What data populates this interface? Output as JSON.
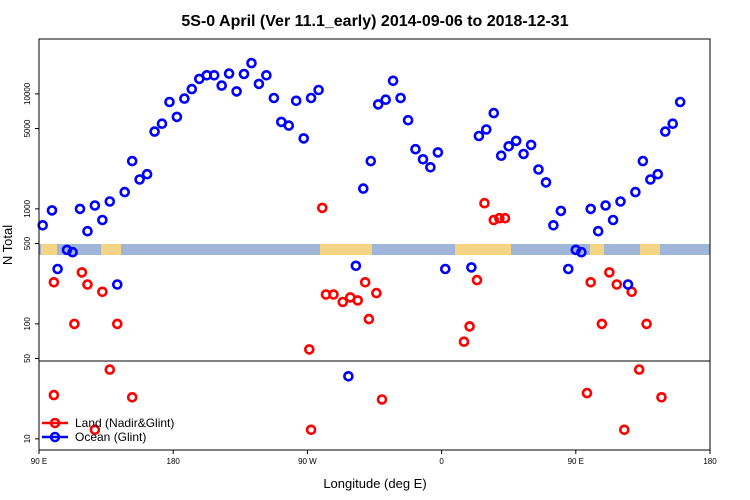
{
  "chart_data": {
    "type": "scatter",
    "title": "5S-0 April (Ver 11.1_early)   2014-09-06 to 2018-12-31",
    "xlabel": "Longitude (deg E)",
    "ylabel": "N Total",
    "xlim": [
      0,
      360
    ],
    "ylim": [
      8,
      30000
    ],
    "y_scale": "log",
    "grid": false,
    "x_ticks": [
      {
        "value": 0,
        "label": "90 E"
      },
      {
        "value": 72,
        "label": "180"
      },
      {
        "value": 144,
        "label": "90 W"
      },
      {
        "value": 216,
        "label": "0"
      },
      {
        "value": 288,
        "label": "90 E"
      },
      {
        "value": 360,
        "label": "180"
      }
    ],
    "y_ticks": [
      {
        "value": 10,
        "label": "10"
      },
      {
        "value": 50,
        "label": "50"
      },
      {
        "value": 100,
        "label": "100"
      },
      {
        "value": 500,
        "label": "500"
      },
      {
        "value": 1000,
        "label": "1000"
      },
      {
        "value": 5000,
        "label": "5000"
      },
      {
        "value": 10000,
        "label": "10000"
      }
    ],
    "reference_line_y": 50,
    "map_band": {
      "y_range": [
        340,
        470
      ],
      "ocean_color": "#9fb6d8",
      "land_color": "#f5d585"
    },
    "legend_position": "bottom-left",
    "series": [
      {
        "name": "Land (Nadir&Glint)",
        "color": "#ff0000",
        "points": [
          [
            8,
            24
          ],
          [
            8,
            230
          ],
          [
            19,
            100
          ],
          [
            23,
            280
          ],
          [
            26,
            220
          ],
          [
            30,
            12
          ],
          [
            34,
            190
          ],
          [
            38,
            40
          ],
          [
            42,
            100
          ],
          [
            50,
            23
          ],
          [
            145,
            60
          ],
          [
            146,
            12
          ],
          [
            152,
            1020
          ],
          [
            154,
            180
          ],
          [
            158,
            180
          ],
          [
            163,
            155
          ],
          [
            167,
            170
          ],
          [
            171,
            160
          ],
          [
            175,
            230
          ],
          [
            177,
            110
          ],
          [
            181,
            185
          ],
          [
            184,
            22
          ],
          [
            228,
            70
          ],
          [
            231,
            95
          ],
          [
            235,
            240
          ],
          [
            239,
            1120
          ],
          [
            244,
            800
          ],
          [
            247,
            830
          ],
          [
            250,
            830
          ],
          [
            294,
            25
          ],
          [
            296,
            230
          ],
          [
            302,
            100
          ],
          [
            306,
            280
          ],
          [
            310,
            220
          ],
          [
            314,
            12
          ],
          [
            318,
            190
          ],
          [
            322,
            40
          ],
          [
            326,
            100
          ],
          [
            334,
            23
          ]
        ]
      },
      {
        "name": "Ocean (Glint)",
        "color": "#0000ff",
        "points": [
          [
            2,
            720
          ],
          [
            7,
            970
          ],
          [
            10,
            300
          ],
          [
            15,
            440
          ],
          [
            18,
            420
          ],
          [
            22,
            1000
          ],
          [
            26,
            640
          ],
          [
            30,
            1070
          ],
          [
            34,
            800
          ],
          [
            38,
            1160
          ],
          [
            42,
            220
          ],
          [
            46,
            1400
          ],
          [
            50,
            2600
          ],
          [
            54,
            1800
          ],
          [
            58,
            2000
          ],
          [
            62,
            4700
          ],
          [
            66,
            5500
          ],
          [
            70,
            8500
          ],
          [
            74,
            6300
          ],
          [
            78,
            9100
          ],
          [
            82,
            11000
          ],
          [
            86,
            13500
          ],
          [
            90,
            14500
          ],
          [
            94,
            14500
          ],
          [
            98,
            11800
          ],
          [
            102,
            15000
          ],
          [
            106,
            10500
          ],
          [
            110,
            14900
          ],
          [
            114,
            18500
          ],
          [
            118,
            12200
          ],
          [
            122,
            14500
          ],
          [
            126,
            9200
          ],
          [
            130,
            5700
          ],
          [
            134,
            5300
          ],
          [
            138,
            8700
          ],
          [
            142,
            4100
          ],
          [
            146,
            9200
          ],
          [
            150,
            10800
          ],
          [
            166,
            35
          ],
          [
            170,
            320
          ],
          [
            174,
            1500
          ],
          [
            178,
            2600
          ],
          [
            182,
            8100
          ],
          [
            186,
            8900
          ],
          [
            190,
            13000
          ],
          [
            194,
            9200
          ],
          [
            198,
            5900
          ],
          [
            202,
            3300
          ],
          [
            206,
            2700
          ],
          [
            210,
            2300
          ],
          [
            214,
            3100
          ],
          [
            218,
            300
          ],
          [
            232,
            310
          ],
          [
            236,
            4300
          ],
          [
            240,
            4900
          ],
          [
            244,
            6800
          ],
          [
            248,
            2900
          ],
          [
            252,
            3500
          ],
          [
            256,
            3900
          ],
          [
            260,
            3000
          ],
          [
            264,
            3600
          ],
          [
            268,
            2200
          ],
          [
            272,
            1700
          ],
          [
            276,
            720
          ],
          [
            280,
            960
          ],
          [
            284,
            300
          ],
          [
            288,
            440
          ],
          [
            291,
            420
          ],
          [
            296,
            1000
          ],
          [
            300,
            640
          ],
          [
            304,
            1070
          ],
          [
            308,
            800
          ],
          [
            312,
            1160
          ],
          [
            316,
            220
          ],
          [
            320,
            1400
          ],
          [
            324,
            2600
          ],
          [
            328,
            1800
          ],
          [
            332,
            2000
          ],
          [
            336,
            4700
          ],
          [
            340,
            5500
          ],
          [
            344,
            8500
          ]
        ]
      }
    ]
  }
}
